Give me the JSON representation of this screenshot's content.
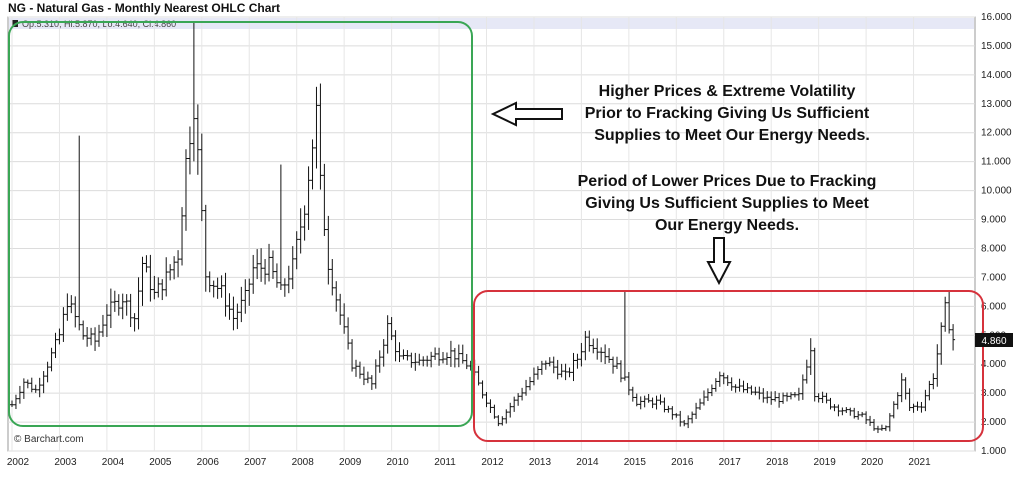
{
  "header": {
    "title": "NG - Natural Gas - Monthly Nearest OHLC Chart"
  },
  "ohlc_readout": "Op:5.310, Hi:5.870, Lo:4.640, Cl:4.860",
  "watermark": "© Barchart.com",
  "last_price": "4.860",
  "colors": {
    "up_box": "#3aa655",
    "down_box": "#d6323c",
    "bars": "#111111",
    "price_badge": "#111111"
  },
  "annotations": {
    "box1_lines": [
      "Higher Prices & Extreme Volatility",
      "Prior to Fracking Giving Us Sufficient",
      "Supplies to Meet Our Energy Needs."
    ],
    "box2_lines": [
      "Period of Lower Prices Due to Fracking",
      "Giving Us Sufficient Supplies to Meet",
      "Our Energy Needs."
    ],
    "arrow1": "left-arrow-icon",
    "arrow2": "down-arrow-icon"
  },
  "chart_data": {
    "type": "ohlc",
    "title": "NG - Natural Gas - Monthly Nearest OHLC Chart",
    "x_tick_labels": [
      "2002",
      "2003",
      "2004",
      "2005",
      "2006",
      "2007",
      "2008",
      "2009",
      "2010",
      "2011",
      "2012",
      "2013",
      "2014",
      "2015",
      "2016",
      "2017",
      "2018",
      "2019",
      "2020",
      "2021"
    ],
    "y_tick_labels": [
      "1.000",
      "2.000",
      "3.000",
      "4.000",
      "5.000",
      "6.000",
      "7.000",
      "8.000",
      "9.000",
      "10.000",
      "11.000",
      "12.000",
      "13.000",
      "14.000",
      "15.000",
      "16.000"
    ],
    "xlim": [
      "2002-01",
      "2021-12"
    ],
    "ylim": [
      1.0,
      16.0
    ],
    "y_axis_side": "right",
    "grid": true,
    "series_close_approx": [
      [
        "2002-01",
        2.6
      ],
      [
        "2002-04",
        3.4
      ],
      [
        "2002-07",
        3.1
      ],
      [
        "2002-10",
        4.0
      ],
      [
        "2003-01",
        5.0
      ],
      [
        "2003-03",
        6.2
      ],
      [
        "2003-07",
        5.0
      ],
      [
        "2003-10",
        4.8
      ],
      [
        "2004-01",
        5.8
      ],
      [
        "2004-05",
        6.3
      ],
      [
        "2004-08",
        5.6
      ],
      [
        "2004-10",
        7.5
      ],
      [
        "2005-01",
        6.4
      ],
      [
        "2005-04",
        7.0
      ],
      [
        "2005-07",
        7.8
      ],
      [
        "2005-09",
        11.0
      ],
      [
        "2005-11",
        13.0
      ],
      [
        "2005-12",
        11.2
      ],
      [
        "2006-02",
        7.1
      ],
      [
        "2006-06",
        6.5
      ],
      [
        "2006-09",
        5.6
      ],
      [
        "2006-12",
        6.3
      ],
      [
        "2007-02",
        7.3
      ],
      [
        "2007-06",
        7.4
      ],
      [
        "2007-09",
        6.5
      ],
      [
        "2007-12",
        7.4
      ],
      [
        "2008-03",
        9.5
      ],
      [
        "2008-06",
        12.7
      ],
      [
        "2008-07",
        10.2
      ],
      [
        "2008-09",
        7.5
      ],
      [
        "2008-12",
        5.7
      ],
      [
        "2009-03",
        4.0
      ],
      [
        "2009-08",
        3.3
      ],
      [
        "2009-12",
        5.3
      ],
      [
        "2010-03",
        4.2
      ],
      [
        "2010-08",
        4.1
      ],
      [
        "2010-12",
        4.3
      ],
      [
        "2011-04",
        4.4
      ],
      [
        "2011-09",
        3.9
      ],
      [
        "2011-12",
        3.0
      ],
      [
        "2012-04",
        2.0
      ],
      [
        "2012-09",
        2.9
      ],
      [
        "2012-12",
        3.4
      ],
      [
        "2013-04",
        4.1
      ],
      [
        "2013-09",
        3.6
      ],
      [
        "2013-12",
        4.2
      ],
      [
        "2014-02",
        4.9
      ],
      [
        "2014-06",
        4.5
      ],
      [
        "2014-10",
        3.9
      ],
      [
        "2015-03",
        2.7
      ],
      [
        "2015-08",
        2.7
      ],
      [
        "2015-12",
        2.3
      ],
      [
        "2016-03",
        1.9
      ],
      [
        "2016-08",
        2.8
      ],
      [
        "2016-12",
        3.7
      ],
      [
        "2017-04",
        3.2
      ],
      [
        "2017-09",
        3.0
      ],
      [
        "2017-12",
        2.8
      ],
      [
        "2018-04",
        2.8
      ],
      [
        "2018-08",
        2.9
      ],
      [
        "2018-11",
        4.6
      ],
      [
        "2018-12",
        3.0
      ],
      [
        "2019-04",
        2.6
      ],
      [
        "2019-09",
        2.3
      ],
      [
        "2019-12",
        2.2
      ],
      [
        "2020-04",
        1.7
      ],
      [
        "2020-06",
        1.8
      ],
      [
        "2020-10",
        3.4
      ],
      [
        "2020-12",
        2.5
      ],
      [
        "2021-03",
        2.6
      ],
      [
        "2021-06",
        3.6
      ],
      [
        "2021-09",
        5.9
      ],
      [
        "2021-10",
        5.4
      ],
      [
        "2021-11",
        4.86
      ]
    ]
  }
}
